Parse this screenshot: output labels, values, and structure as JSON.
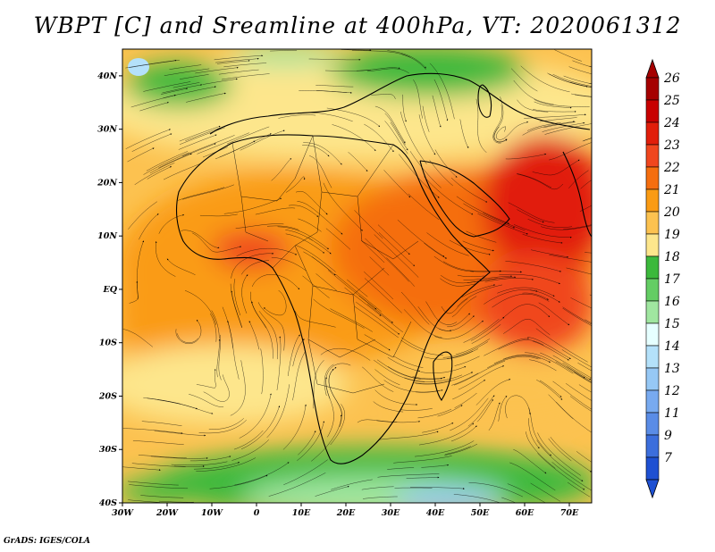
{
  "title": "WBPT [C] and Sreamline at 400hPa, VT: 2020061312",
  "credit": "GrADS: IGES/COLA",
  "map": {
    "lon_range": [
      -30,
      75
    ],
    "lat_range": [
      -40,
      45
    ],
    "x_ticks": [
      {
        "value": -30,
        "label": "30W"
      },
      {
        "value": -20,
        "label": "20W"
      },
      {
        "value": -10,
        "label": "10W"
      },
      {
        "value": 0,
        "label": "0"
      },
      {
        "value": 10,
        "label": "10E"
      },
      {
        "value": 20,
        "label": "20E"
      },
      {
        "value": 30,
        "label": "30E"
      },
      {
        "value": 40,
        "label": "40E"
      },
      {
        "value": 50,
        "label": "50E"
      },
      {
        "value": 60,
        "label": "60E"
      },
      {
        "value": 70,
        "label": "70E"
      }
    ],
    "y_ticks": [
      {
        "value": 40,
        "label": "40N"
      },
      {
        "value": 30,
        "label": "30N"
      },
      {
        "value": 20,
        "label": "20N"
      },
      {
        "value": 10,
        "label": "10N"
      },
      {
        "value": 0,
        "label": "EQ"
      },
      {
        "value": -10,
        "label": "10S"
      },
      {
        "value": -20,
        "label": "20S"
      },
      {
        "value": -30,
        "label": "30S"
      },
      {
        "value": -40,
        "label": "40S"
      }
    ]
  },
  "colorbar": {
    "levels": [
      {
        "label": "26",
        "color": "#a50000"
      },
      {
        "label": "25",
        "color": "#c80000"
      },
      {
        "label": "24",
        "color": "#e11e0a"
      },
      {
        "label": "23",
        "color": "#f0461e"
      },
      {
        "label": "22",
        "color": "#f56e0f"
      },
      {
        "label": "21",
        "color": "#fa9b14"
      },
      {
        "label": "20",
        "color": "#fcc250"
      },
      {
        "label": "19",
        "color": "#fde68c"
      },
      {
        "label": "18",
        "color": "#3cb93c"
      },
      {
        "label": "17",
        "color": "#64cd64"
      },
      {
        "label": "16",
        "color": "#a0e6a0"
      },
      {
        "label": "15",
        "color": "#e6ffff"
      },
      {
        "label": "14",
        "color": "#b4e1fa"
      },
      {
        "label": "13",
        "color": "#96c8f5"
      },
      {
        "label": "12",
        "color": "#78aaf0"
      },
      {
        "label": "11",
        "color": "#5a8ce6"
      },
      {
        "label": "9",
        "color": "#3c6edc"
      },
      {
        "label": "7",
        "color": "#1e50d2"
      }
    ]
  }
}
